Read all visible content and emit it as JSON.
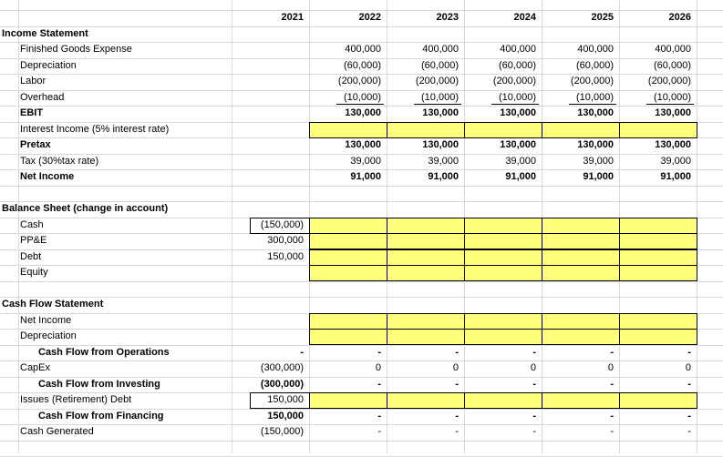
{
  "years": [
    "2021",
    "2022",
    "2023",
    "2024",
    "2025",
    "2026"
  ],
  "income_statement": {
    "title": "Income Statement",
    "rows": [
      {
        "label": "Finished Goods Expense",
        "indent": 1,
        "bold": false,
        "values": [
          "",
          "400,000",
          "400,000",
          "400,000",
          "400,000",
          "400,000"
        ]
      },
      {
        "label": "Depreciation",
        "indent": 1,
        "bold": false,
        "values": [
          "",
          "(60,000)",
          "(60,000)",
          "(60,000)",
          "(60,000)",
          "(60,000)"
        ]
      },
      {
        "label": "Labor",
        "indent": 1,
        "bold": false,
        "values": [
          "",
          "(200,000)",
          "(200,000)",
          "(200,000)",
          "(200,000)",
          "(200,000)"
        ]
      },
      {
        "label": "Overhead",
        "indent": 1,
        "bold": false,
        "values": [
          "",
          "(10,000)",
          "(10,000)",
          "(10,000)",
          "(10,000)",
          "(10,000)"
        ]
      },
      {
        "label": "EBIT",
        "indent": 1,
        "bold": true,
        "values": [
          "",
          "130,000",
          "130,000",
          "130,000",
          "130,000",
          "130,000"
        ]
      },
      {
        "label": "Interest Income (5% interest rate)",
        "indent": 1,
        "bold": false,
        "values": [
          "",
          "",
          "",
          "",
          "",
          ""
        ]
      },
      {
        "label": "Pretax",
        "indent": 1,
        "bold": true,
        "values": [
          "",
          "130,000",
          "130,000",
          "130,000",
          "130,000",
          "130,000"
        ]
      },
      {
        "label": "Tax (30%tax rate)",
        "indent": 1,
        "bold": false,
        "values": [
          "",
          "39,000",
          "39,000",
          "39,000",
          "39,000",
          "39,000"
        ]
      },
      {
        "label": "Net Income",
        "indent": 1,
        "bold": true,
        "values": [
          "",
          "91,000",
          "91,000",
          "91,000",
          "91,000",
          "91,000"
        ]
      }
    ]
  },
  "balance_sheet": {
    "title": "Balance Sheet (change in account)",
    "rows": [
      {
        "label": "Cash",
        "indent": 1,
        "bold": false,
        "values": [
          "(150,000)",
          "",
          "",
          "",
          "",
          ""
        ]
      },
      {
        "label": "PP&E",
        "indent": 1,
        "bold": false,
        "values": [
          "300,000",
          "",
          "",
          "",
          "",
          ""
        ]
      },
      {
        "label": "Debt",
        "indent": 1,
        "bold": false,
        "values": [
          "150,000",
          "",
          "",
          "",
          "",
          ""
        ]
      },
      {
        "label": "Equity",
        "indent": 1,
        "bold": false,
        "values": [
          "",
          "",
          "",
          "",
          "",
          ""
        ]
      }
    ]
  },
  "cash_flow": {
    "title": "Cash Flow Statement",
    "rows": [
      {
        "label": "Net Income",
        "indent": 1,
        "bold": false,
        "values": [
          "",
          "",
          "",
          "",
          "",
          ""
        ]
      },
      {
        "label": "Depreciation",
        "indent": 1,
        "bold": false,
        "values": [
          "",
          "",
          "",
          "",
          "",
          ""
        ]
      },
      {
        "label": "Cash Flow from Operations",
        "indent": 2,
        "bold": true,
        "values": [
          "-",
          "-",
          "-",
          "-",
          "-",
          "-"
        ]
      },
      {
        "label": "CapEx",
        "indent": 1,
        "bold": false,
        "values": [
          "(300,000)",
          "0",
          "0",
          "0",
          "0",
          "0"
        ]
      },
      {
        "label": "Cash Flow from Investing",
        "indent": 2,
        "bold": true,
        "values": [
          "(300,000)",
          "-",
          "-",
          "-",
          "-",
          "-"
        ]
      },
      {
        "label": "Issues (Retirement) Debt",
        "indent": 1,
        "bold": false,
        "values": [
          "150,000",
          "",
          "",
          "",
          "",
          ""
        ]
      },
      {
        "label": "Cash Flow from Financing",
        "indent": 2,
        "bold": true,
        "values": [
          "150,000",
          "-",
          "-",
          "-",
          "-",
          "-"
        ]
      },
      {
        "label": "Cash Generated",
        "indent": 1,
        "bold": false,
        "values": [
          "(150,000)",
          "-",
          "-",
          "-",
          "-",
          "-"
        ]
      }
    ]
  }
}
